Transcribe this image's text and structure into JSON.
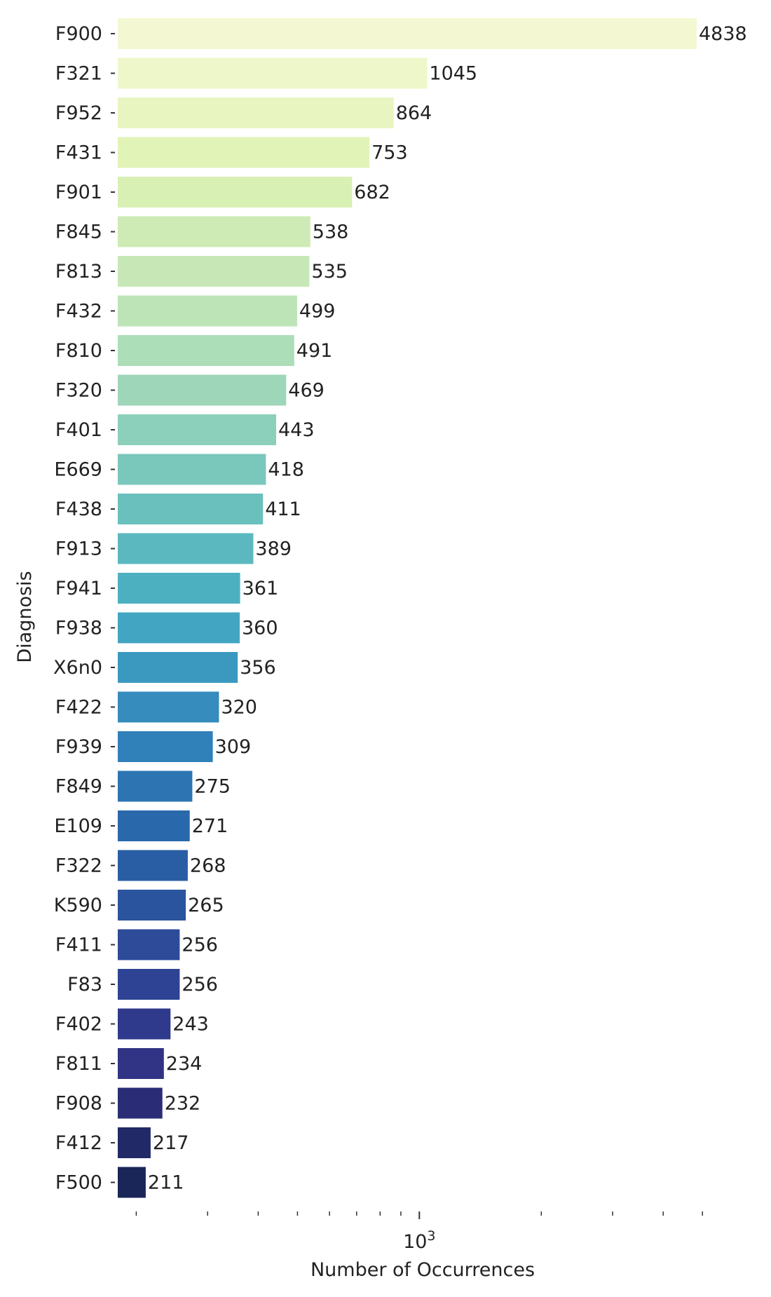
{
  "chart_data": {
    "type": "bar",
    "orientation": "horizontal",
    "x_scale": "log",
    "xlabel": "Number of Occurrences",
    "ylabel": "Diagnosis",
    "xlim": [
      180,
      6000
    ],
    "x_major_tick_labels": [
      {
        "value": 1000,
        "base": "10",
        "exponent": "3"
      }
    ],
    "x_minor_ticks": [
      200,
      300,
      400,
      500,
      600,
      700,
      800,
      900,
      2000,
      3000,
      4000,
      5000
    ],
    "grid": false,
    "legend": false,
    "categories": [
      "F900",
      "F321",
      "F952",
      "F431",
      "F901",
      "F845",
      "F813",
      "F432",
      "F810",
      "F320",
      "F401",
      "E669",
      "F438",
      "F913",
      "F941",
      "F938",
      "X6n0",
      "F422",
      "F939",
      "F849",
      "E109",
      "F322",
      "K590",
      "F411",
      "F83",
      "F402",
      "F811",
      "F908",
      "F412",
      "F500"
    ],
    "values": [
      4838,
      1045,
      864,
      753,
      682,
      538,
      535,
      499,
      491,
      469,
      443,
      418,
      411,
      389,
      361,
      360,
      356,
      320,
      309,
      275,
      271,
      268,
      265,
      256,
      256,
      243,
      234,
      232,
      217,
      211
    ],
    "value_labels": [
      "4838",
      "1045",
      "864",
      "753",
      "682",
      "538",
      "535",
      "499",
      "491",
      "469",
      "443",
      "418",
      "411",
      "389",
      "361",
      "360",
      "356",
      "320",
      "309",
      "275",
      "271",
      "268",
      "265",
      "256",
      "256",
      "243",
      "234",
      "232",
      "217",
      "211"
    ],
    "colors": [
      "#f3f8d2",
      "#eef7ca",
      "#e8f5c0",
      "#e2f3b8",
      "#d9f0b4",
      "#cfebb5",
      "#c7e8b6",
      "#bce4b6",
      "#acdeb8",
      "#9dd6b9",
      "#8ccfbb",
      "#7ac7bc",
      "#6ac0bd",
      "#5bb8bf",
      "#4db0c0",
      "#42a5c1",
      "#3b99c0",
      "#358cbd",
      "#3080ba",
      "#2c74b2",
      "#2968ab",
      "#295ea5",
      "#2b549f",
      "#2d4b99",
      "#2e4393",
      "#303a8c",
      "#313384",
      "#2a2d76",
      "#222967",
      "#1a2658"
    ]
  }
}
